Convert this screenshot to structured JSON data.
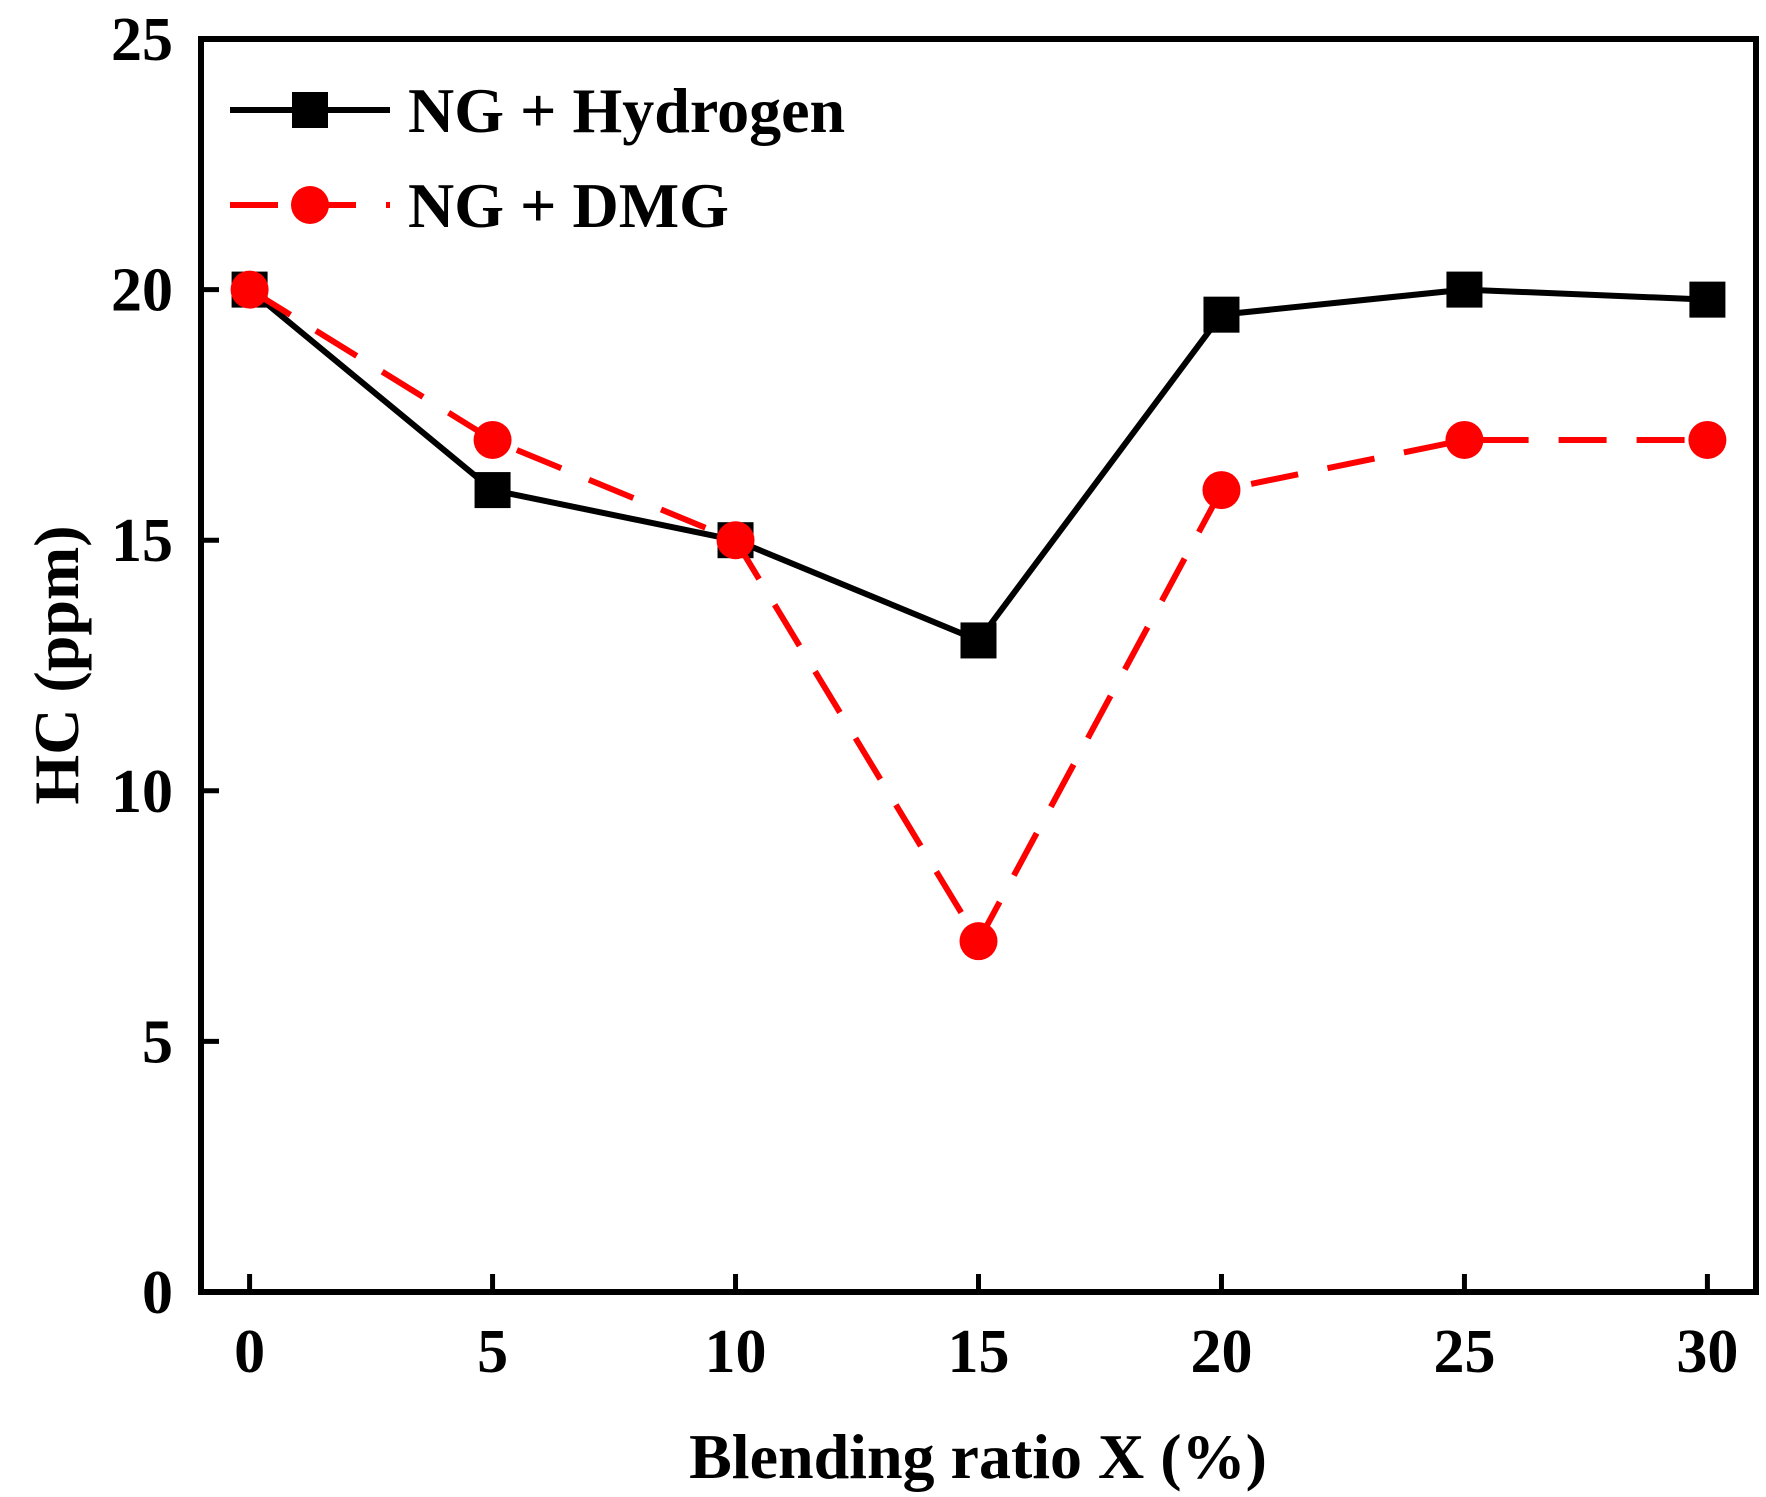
{
  "chart_data": {
    "type": "line",
    "title": "",
    "xlabel": "Blending ratio X (%)",
    "ylabel": "HC  (ppm)",
    "x": [
      0,
      5,
      10,
      15,
      20,
      25,
      30
    ],
    "xlim": [
      -1,
      31
    ],
    "ylim": [
      0,
      25
    ],
    "xticks": [
      "0",
      "5",
      "10",
      "15",
      "20",
      "25",
      "30"
    ],
    "yticks": [
      "0",
      "5",
      "10",
      "15",
      "20",
      "25"
    ],
    "grid": false,
    "legend_position": "top-left",
    "series": [
      {
        "name": "NG + Hydrogen",
        "color": "#000000",
        "line": "solid",
        "marker": "square",
        "values": [
          20,
          16,
          15,
          13,
          19.5,
          20,
          19.8
        ]
      },
      {
        "name": "NG + DMG",
        "color": "#ff0000",
        "line": "dashed",
        "marker": "circle",
        "values": [
          20,
          17,
          15,
          7,
          16,
          17,
          17
        ]
      }
    ]
  }
}
